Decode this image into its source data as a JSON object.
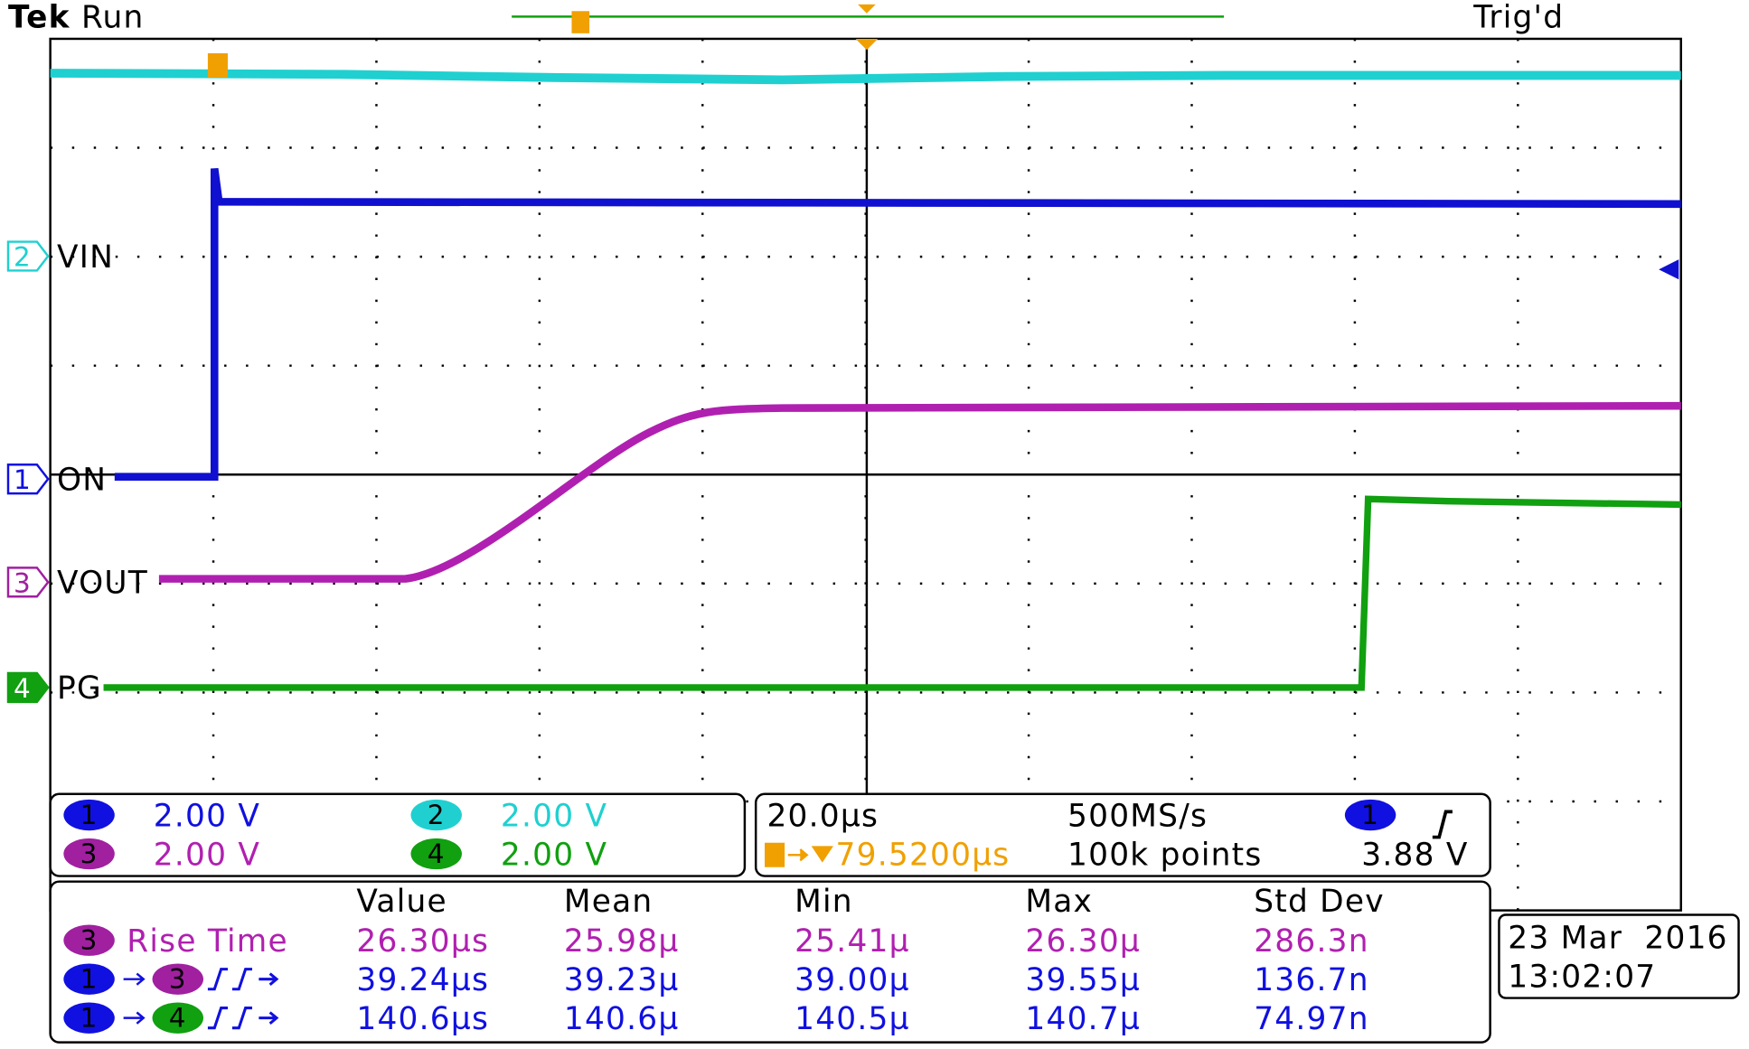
{
  "header": {
    "brand": "Tek",
    "status": "Run",
    "trigger_status": "Trig'd"
  },
  "channel_markers": [
    {
      "channel": "2",
      "label": "VIN"
    },
    {
      "channel": "1",
      "label": "ON"
    },
    {
      "channel": "3",
      "label": "VOUT"
    },
    {
      "channel": "4",
      "label": "PG"
    }
  ],
  "channel_settings": [
    {
      "channel": "1",
      "scale": "2.00 V"
    },
    {
      "channel": "2",
      "scale": "2.00 V"
    },
    {
      "channel": "3",
      "scale": "2.00 V"
    },
    {
      "channel": "4",
      "scale": "2.00 V"
    }
  ],
  "timebase": {
    "scale": "20.0µs",
    "sample_rate": "500MS/s",
    "trigger_channel": "1",
    "trigger_position": "79.5200µs",
    "record_length": "100k points",
    "trigger_level": "3.88 V"
  },
  "measurements": {
    "headers": [
      "Value",
      "Mean",
      "Min",
      "Max",
      "Std Dev"
    ],
    "rows": [
      {
        "channels": [
          "3"
        ],
        "label": "Rise Time",
        "values": [
          "26.30µs",
          "25.98µ",
          "25.41µ",
          "26.30µ",
          "286.3n"
        ]
      },
      {
        "channels": [
          "1",
          "3"
        ],
        "values": [
          "39.24µs",
          "39.23µ",
          "39.00µ",
          "39.55µ",
          "136.7n"
        ]
      },
      {
        "channels": [
          "1",
          "4"
        ],
        "values": [
          "140.6µs",
          "140.6µ",
          "140.5µ",
          "140.7µ",
          "74.97n"
        ]
      }
    ]
  },
  "timestamp": {
    "date": "23 Mar  2016",
    "time": "13:02:07"
  }
}
